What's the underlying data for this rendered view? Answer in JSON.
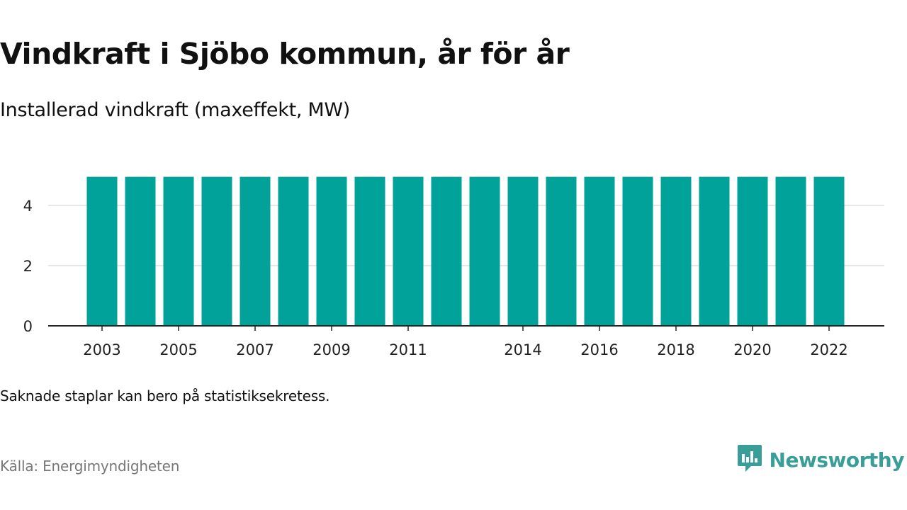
{
  "title": "Vindkraft i Sjöbo kommun, år för år",
  "subtitle": "Installerad vindkraft (maxeffekt, MW)",
  "note": "Saknade staplar kan bero på statistiksekretess.",
  "source": "Källa: Energimyndigheten",
  "brand": {
    "name": "Newsworthy",
    "icon": "newsworthy-logo-icon"
  },
  "colors": {
    "bar": "#00a29a",
    "gridline": "#dddddd",
    "axis": "#222222",
    "brand": "#3a9e98"
  },
  "chart_data": {
    "type": "bar",
    "title": "Vindkraft i Sjöbo kommun, år för år",
    "subtitle": "Installerad vindkraft (maxeffekt, MW)",
    "xlabel": "",
    "ylabel": "",
    "categories": [
      "2003",
      "2004",
      "2005",
      "2006",
      "2007",
      "2008",
      "2009",
      "2010",
      "2011",
      "2012",
      "2013",
      "2014",
      "2015",
      "2016",
      "2017",
      "2018",
      "2019",
      "2020",
      "2021",
      "2022"
    ],
    "series": [
      {
        "values": [
          4.95,
          4.95,
          4.95,
          4.95,
          4.95,
          4.95,
          4.95,
          4.95,
          4.95,
          4.95,
          4.95,
          4.95,
          4.95,
          4.95,
          4.95,
          4.95,
          4.95,
          4.95,
          4.95,
          4.95
        ]
      }
    ],
    "x_tick_labels": [
      "2003",
      "2005",
      "2007",
      "2009",
      "2011",
      "2014",
      "2016",
      "2018",
      "2020",
      "2022"
    ],
    "y_ticks": [
      0,
      2,
      4
    ],
    "ylim": [
      0,
      5.6
    ],
    "grid": "horizontal",
    "legend": "none"
  }
}
